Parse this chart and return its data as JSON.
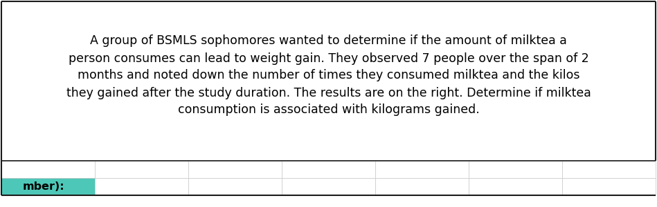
{
  "paragraph_text": "A group of BSMLS sophomores wanted to determine if the amount of milktea a\nperson consumes can lead to weight gain. They observed 7 people over the span of 2\nmonths and noted down the number of times they consumed milktea and the kilos\nthey gained after the study duration. The results are on the right. Determine if milktea\nconsumption is associated with kilograms gained.",
  "bottom_label": "mber):",
  "bg_color": "#ffffff",
  "border_color": "#1a1a1a",
  "teal_color": "#4dc8b8",
  "table_line_color": "#c8c8c8",
  "text_color": "#000000",
  "font_size": 12.5,
  "label_font_size": 11.5,
  "num_table_cols": 7,
  "fig_width": 9.49,
  "fig_height": 3.0,
  "dpi": 100
}
